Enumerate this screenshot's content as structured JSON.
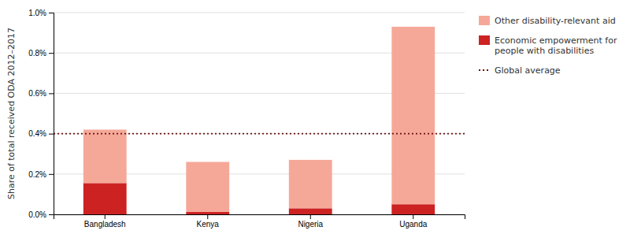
{
  "chart_data": {
    "type": "bar",
    "stacked": true,
    "ylabel": "Share of total received ODA 2012–2017",
    "categories": [
      "Bangladesh",
      "Kenya",
      "Nigeria",
      "Uganda"
    ],
    "series": [
      {
        "name": "Economic empowerment for\npeople with disabilities",
        "color": "#cc2222",
        "values": [
          0.00155,
          0.00012,
          0.0003,
          0.0005
        ]
      },
      {
        "name": "Other disability-relevant aid",
        "color": "#f5a898",
        "values": [
          0.00265,
          0.00248,
          0.0024,
          0.0088
        ]
      }
    ],
    "hlines": [
      {
        "name": "Global average",
        "value": 0.004,
        "color": "#6b1010",
        "line_style": "dotted"
      }
    ],
    "ylim": [
      0,
      0.01
    ],
    "yticks": [
      {
        "value": 0.0,
        "label": "0.0%"
      },
      {
        "value": 0.002,
        "label": "0.2%"
      },
      {
        "value": 0.004,
        "label": "0.4%"
      },
      {
        "value": 0.006,
        "label": "0.6%"
      },
      {
        "value": 0.008,
        "label": "0.8%"
      },
      {
        "value": 0.01,
        "label": "1.0%"
      }
    ],
    "grid": true,
    "legend": "upper right"
  }
}
